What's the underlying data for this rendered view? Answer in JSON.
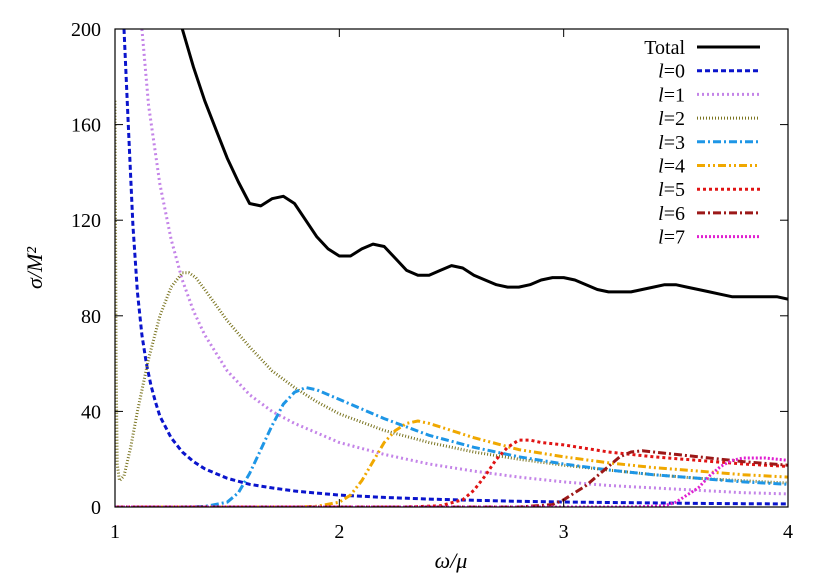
{
  "chart_data": {
    "type": "line",
    "title": "",
    "xlabel": "ω/μ",
    "ylabel": "σ/M²",
    "xlim": [
      1,
      4
    ],
    "ylim": [
      0,
      200
    ],
    "xticks": [
      "1",
      "2",
      "3",
      "4"
    ],
    "yticks": [
      "0",
      "40",
      "80",
      "120",
      "160",
      "200"
    ],
    "grid": false,
    "legend_position": "top-right",
    "series": [
      {
        "name": "Total",
        "legend_prefix": "",
        "legend_main": "Total",
        "color": "#000000",
        "dash": "solid",
        "x": [
          1.3,
          1.35,
          1.4,
          1.45,
          1.5,
          1.55,
          1.6,
          1.65,
          1.7,
          1.75,
          1.8,
          1.85,
          1.9,
          1.95,
          2.0,
          2.05,
          2.1,
          2.15,
          2.2,
          2.25,
          2.3,
          2.35,
          2.4,
          2.45,
          2.5,
          2.55,
          2.6,
          2.65,
          2.7,
          2.75,
          2.8,
          2.85,
          2.9,
          2.95,
          3.0,
          3.05,
          3.1,
          3.15,
          3.2,
          3.25,
          3.3,
          3.35,
          3.4,
          3.45,
          3.5,
          3.55,
          3.6,
          3.65,
          3.7,
          3.75,
          3.8,
          3.85,
          3.9,
          3.95,
          4.0
        ],
        "y": [
          200,
          184,
          170,
          158,
          146,
          136,
          127,
          126,
          129,
          130,
          127,
          120,
          113,
          108,
          105,
          105,
          108,
          110,
          109,
          104,
          99,
          97,
          97,
          99,
          101,
          100,
          97,
          95,
          93,
          92,
          92,
          93,
          95,
          96,
          96,
          95,
          93,
          91,
          90,
          90,
          90,
          91,
          92,
          93,
          93,
          92,
          91,
          90,
          89,
          88,
          88,
          88,
          88,
          88,
          87
        ]
      },
      {
        "name": "l=0",
        "legend_prefix": "l",
        "legend_main": "=0",
        "color": "#0a14cc",
        "dash": "5,3",
        "x": [
          1.04,
          1.06,
          1.08,
          1.1,
          1.12,
          1.14,
          1.16,
          1.18,
          1.2,
          1.25,
          1.3,
          1.35,
          1.4,
          1.5,
          1.6,
          1.7,
          1.8,
          1.9,
          2.0,
          2.2,
          2.4,
          2.6,
          2.8,
          3.0,
          3.2,
          3.4,
          3.6,
          3.8,
          4.0
        ],
        "y": [
          200,
          158,
          118,
          90,
          72,
          60,
          51,
          44,
          38,
          29,
          23,
          19,
          16,
          12,
          9.5,
          8,
          6.7,
          5.8,
          5,
          4,
          3.3,
          2.8,
          2.4,
          2.1,
          1.9,
          1.7,
          1.5,
          1.4,
          1.3
        ]
      },
      {
        "name": "l=1",
        "legend_prefix": "l",
        "legend_main": "=1",
        "color": "#c484e8",
        "dash": "2,3",
        "x": [
          1.12,
          1.15,
          1.2,
          1.25,
          1.3,
          1.35,
          1.4,
          1.5,
          1.6,
          1.7,
          1.8,
          1.9,
          2.0,
          2.2,
          2.4,
          2.6,
          2.8,
          3.0,
          3.2,
          3.4,
          3.6,
          3.8,
          4.0
        ],
        "y": [
          200,
          168,
          135,
          112,
          95,
          82,
          72,
          57,
          47,
          40,
          35,
          31,
          27,
          22,
          18,
          15,
          12.5,
          10.5,
          9,
          8,
          7,
          6,
          5.5
        ]
      },
      {
        "name": "l=2",
        "legend_prefix": "l",
        "legend_main": "=2",
        "color": "#7a7420",
        "dash": "1,2",
        "x": [
          1.0,
          1.005,
          1.01,
          1.02,
          1.04,
          1.07,
          1.1,
          1.15,
          1.2,
          1.25,
          1.3,
          1.33,
          1.36,
          1.4,
          1.5,
          1.6,
          1.7,
          1.8,
          1.9,
          2.0,
          2.2,
          2.4,
          2.6,
          2.8,
          3.0,
          3.2,
          3.4,
          3.6,
          3.8,
          4.0
        ],
        "y": [
          170,
          60,
          18,
          11,
          13,
          25,
          40,
          62,
          80,
          92,
          98,
          98,
          96,
          91,
          78,
          67,
          57,
          50,
          44,
          39,
          32,
          27,
          23,
          20,
          17.5,
          15.5,
          13.5,
          12,
          11,
          10
        ]
      },
      {
        "name": "l=3",
        "legend_prefix": "l",
        "legend_main": "=3",
        "color": "#1e96e6",
        "dash": "8,3,2,3",
        "x": [
          1.0,
          1.3,
          1.4,
          1.5,
          1.55,
          1.6,
          1.65,
          1.7,
          1.75,
          1.8,
          1.85,
          1.9,
          2.0,
          2.2,
          2.4,
          2.6,
          2.8,
          3.0,
          3.2,
          3.4,
          3.6,
          3.8,
          4.0
        ],
        "y": [
          0,
          0,
          0.2,
          2,
          6,
          14,
          24,
          34,
          43,
          48,
          50,
          49,
          45,
          37,
          30,
          25,
          21,
          18,
          15.5,
          13.5,
          12,
          10.5,
          9.5
        ]
      },
      {
        "name": "l=4",
        "legend_prefix": "l",
        "legend_main": "=4",
        "color": "#f0a800",
        "dash": "8,3,2,3,2,3",
        "x": [
          1.0,
          1.8,
          1.9,
          2.0,
          2.05,
          2.1,
          2.15,
          2.2,
          2.25,
          2.3,
          2.35,
          2.4,
          2.5,
          2.6,
          2.8,
          3.0,
          3.2,
          3.4,
          3.6,
          3.8,
          4.0
        ],
        "y": [
          0,
          0,
          0.3,
          2,
          5,
          11,
          19,
          27,
          32,
          35,
          36,
          35,
          32,
          29,
          24,
          21,
          18.5,
          16.5,
          15,
          13.5,
          12.5
        ]
      },
      {
        "name": "l=5",
        "legend_prefix": "l",
        "legend_main": "=5",
        "color": "#e01414",
        "dash": "3,3",
        "x": [
          1.0,
          2.3,
          2.45,
          2.55,
          2.6,
          2.65,
          2.7,
          2.75,
          2.8,
          2.85,
          2.9,
          3.0,
          3.2,
          3.4,
          3.6,
          3.8,
          4.0
        ],
        "y": [
          0,
          0,
          0.5,
          3,
          7,
          13,
          20,
          25,
          28,
          28,
          27,
          26,
          23,
          21,
          19.5,
          18,
          17
        ]
      },
      {
        "name": "l=6",
        "legend_prefix": "l",
        "legend_main": "=6",
        "color": "#9c1818",
        "dash": "8,3,2,3",
        "x": [
          1.0,
          2.8,
          2.95,
          3.0,
          3.1,
          3.2,
          3.25,
          3.3,
          3.35,
          3.4,
          3.5,
          3.6,
          3.8,
          4.0
        ],
        "y": [
          0,
          0,
          1,
          3,
          9,
          17,
          21,
          23,
          23.5,
          23,
          22,
          21,
          19,
          17.5
        ]
      },
      {
        "name": "l=7",
        "legend_prefix": "l",
        "legend_main": "=7",
        "color": "#e020d0",
        "dash": "2,2",
        "x": [
          1.0,
          3.3,
          3.45,
          3.5,
          3.6,
          3.65,
          3.7,
          3.75,
          3.8,
          3.85,
          3.9,
          4.0
        ],
        "y": [
          0,
          0,
          0.5,
          2,
          8,
          13,
          17,
          19.5,
          20.5,
          20.5,
          20.5,
          19.5
        ]
      }
    ]
  }
}
